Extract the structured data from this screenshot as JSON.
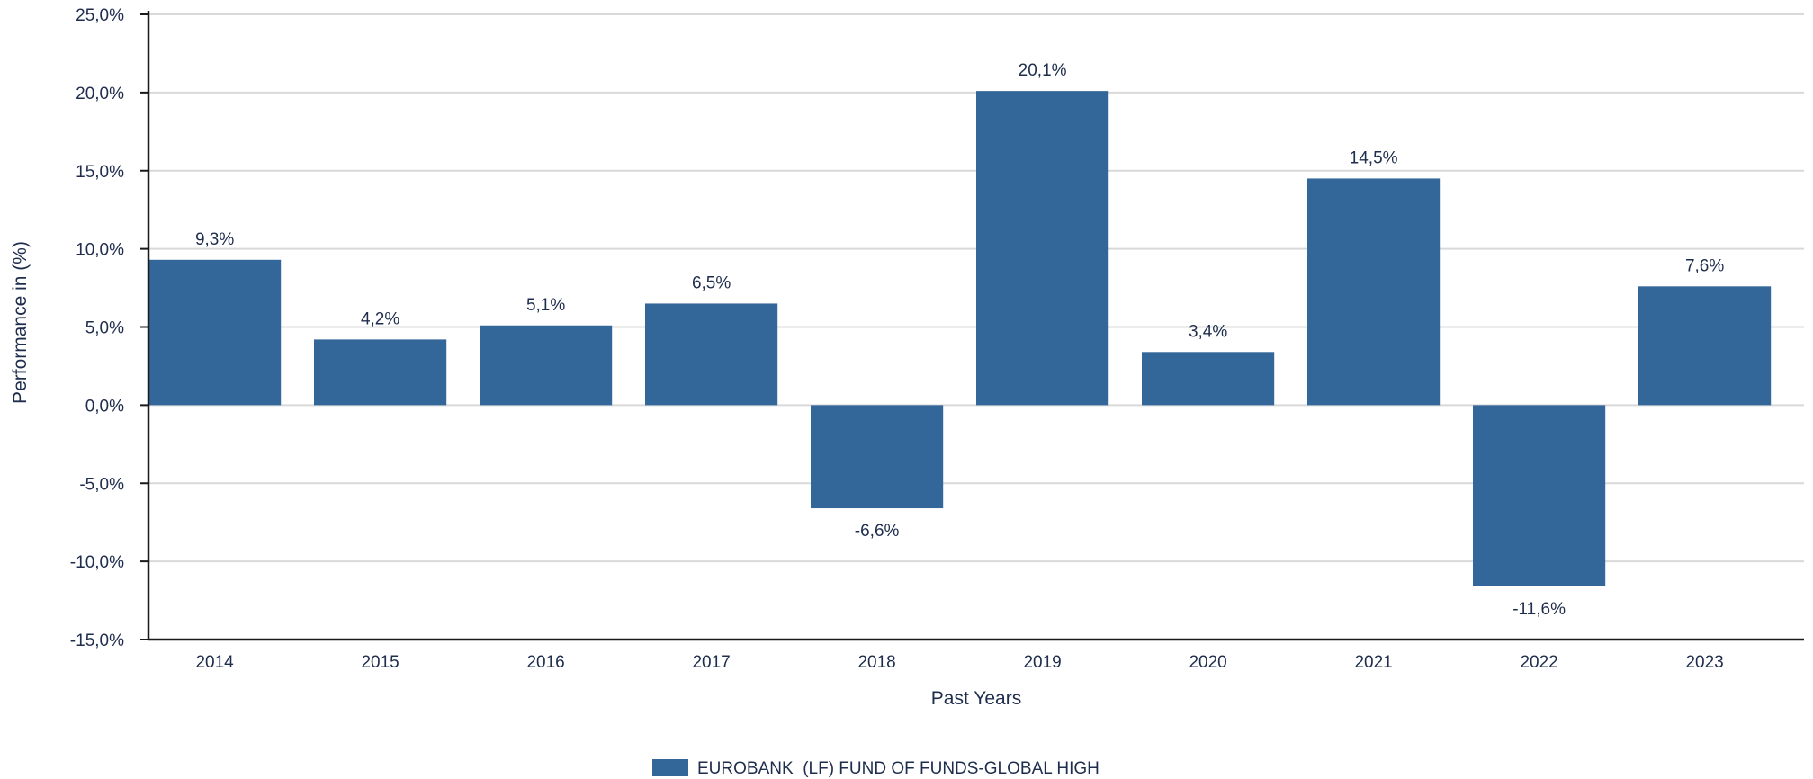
{
  "chart_data": {
    "type": "bar",
    "categories": [
      "2014",
      "2015",
      "2016",
      "2017",
      "2018",
      "2019",
      "2020",
      "2021",
      "2022",
      "2023"
    ],
    "series": [
      {
        "name": "EUROBANK  (LF) FUND OF FUNDS-GLOBAL HIGH",
        "values": [
          9.3,
          4.2,
          5.1,
          6.5,
          -6.6,
          20.1,
          3.4,
          14.5,
          -11.6,
          7.6
        ],
        "labels": [
          "9,3%",
          "4,2%",
          "5,1%",
          "6,5%",
          "-6,6%",
          "20,1%",
          "3,4%",
          "14,5%",
          "-11,6%",
          "7,6%"
        ],
        "color": "#336699"
      }
    ],
    "xlabel": "Past Years",
    "ylabel": "Performance in (%)",
    "ylim": [
      -15,
      25
    ],
    "yticks": [
      25,
      20,
      15,
      10,
      5,
      0,
      -5,
      -10,
      -15
    ],
    "ytick_labels": [
      "25,0%",
      "20,0%",
      "15,0%",
      "10,0%",
      "5,0%",
      "0,0%",
      "-5,0%",
      "-10,0%",
      "-15,0%"
    ],
    "grid": true,
    "legend": "bottom-center"
  }
}
